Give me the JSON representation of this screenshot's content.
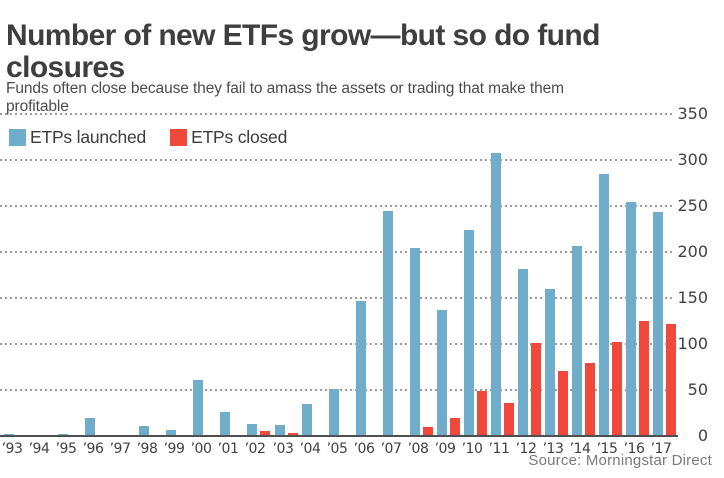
{
  "header": {
    "title": "Number of new ETFs grow—but so do fund closures",
    "subtitle": "Funds often close because they fail to amass the assets or trading that make them profitable"
  },
  "legend": [
    {
      "label": "ETPs launched",
      "color": "#6FADCB"
    },
    {
      "label": "ETPs closed",
      "color": "#F0483A"
    }
  ],
  "source": "Source: Morningstar Direct",
  "colors": {
    "launched_bar": "#6FADCB",
    "closed_bar": "#F0483A",
    "title_text": "#3e3e3e",
    "axis_text": "#414141",
    "gridline": "#9d9d9d",
    "baseline": "#4f4f4f",
    "source_text": "#7a7a7a"
  },
  "chart_data": {
    "type": "bar",
    "categories": [
      "’93",
      "’94",
      "’95",
      "’96",
      "’97",
      "’98",
      "’99",
      "’00",
      "’01",
      "’02",
      "’03",
      "’04",
      "’05",
      "’06",
      "’07",
      "’08",
      "’09",
      "’10",
      "’11",
      "’12",
      "’13",
      "’14",
      "’15",
      "’16",
      "’17"
    ],
    "series": [
      {
        "name": "ETPs launched",
        "color": "#6FADCB",
        "values": [
          1,
          0,
          1,
          18,
          0,
          10,
          5,
          60,
          25,
          12,
          11,
          34,
          50,
          146,
          243,
          203,
          136,
          223,
          307,
          180,
          159,
          205,
          284,
          253,
          242
        ]
      },
      {
        "name": "ETPs closed",
        "color": "#F0483A",
        "values": [
          0,
          0,
          0,
          0,
          0,
          0,
          0,
          0,
          0,
          4,
          2,
          0,
          0,
          0,
          0,
          9,
          19,
          48,
          35,
          100,
          70,
          78,
          101,
          124,
          121
        ]
      }
    ],
    "title": "Number of new ETFs grow—but so do fund closures",
    "xlabel": "",
    "ylabel": "",
    "ylim": [
      0,
      350
    ],
    "yticks": [
      0,
      50,
      100,
      150,
      200,
      250,
      300,
      350
    ],
    "y_axis_side": "right",
    "grid": "horizontal-dotted",
    "legend_position": "top-left"
  }
}
